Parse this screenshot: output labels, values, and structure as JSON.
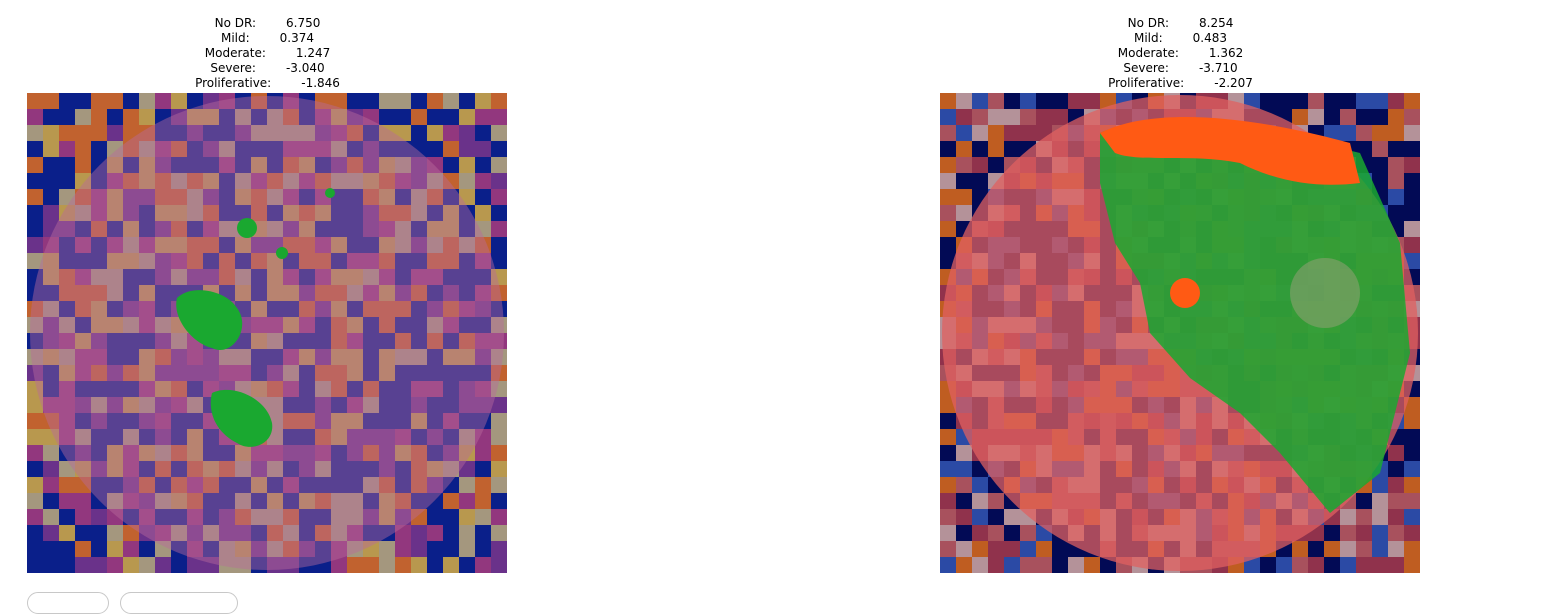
{
  "panels": [
    {
      "scores": [
        {
          "label": "No DR:",
          "value": "6.750"
        },
        {
          "label": "Mild:",
          "value": "0.374"
        },
        {
          "label": "Moderate:",
          "value": "1.247"
        },
        {
          "label": "Severe:",
          "value": "-3.040"
        },
        {
          "label": "Proliferative:",
          "value": "-1.846"
        }
      ]
    },
    {
      "scores": [
        {
          "label": "No DR:",
          "value": "8.254"
        },
        {
          "label": "Mild:",
          "value": "0.483"
        },
        {
          "label": "Moderate:",
          "value": "1.362"
        },
        {
          "label": "Severe:",
          "value": "-3.710"
        },
        {
          "label": "Proliferative:",
          "value": "-2.207"
        }
      ]
    }
  ],
  "colors": {
    "heat_background_left": "#0a1f8a",
    "heat_background_right": "#020a55",
    "retina_tint_left": "#b86a9c",
    "retina_tint_right": "#e06060",
    "heat_hot": "#ff7a10",
    "heat_warm": "#f3c23a",
    "overlay_green": "#1aa830"
  }
}
